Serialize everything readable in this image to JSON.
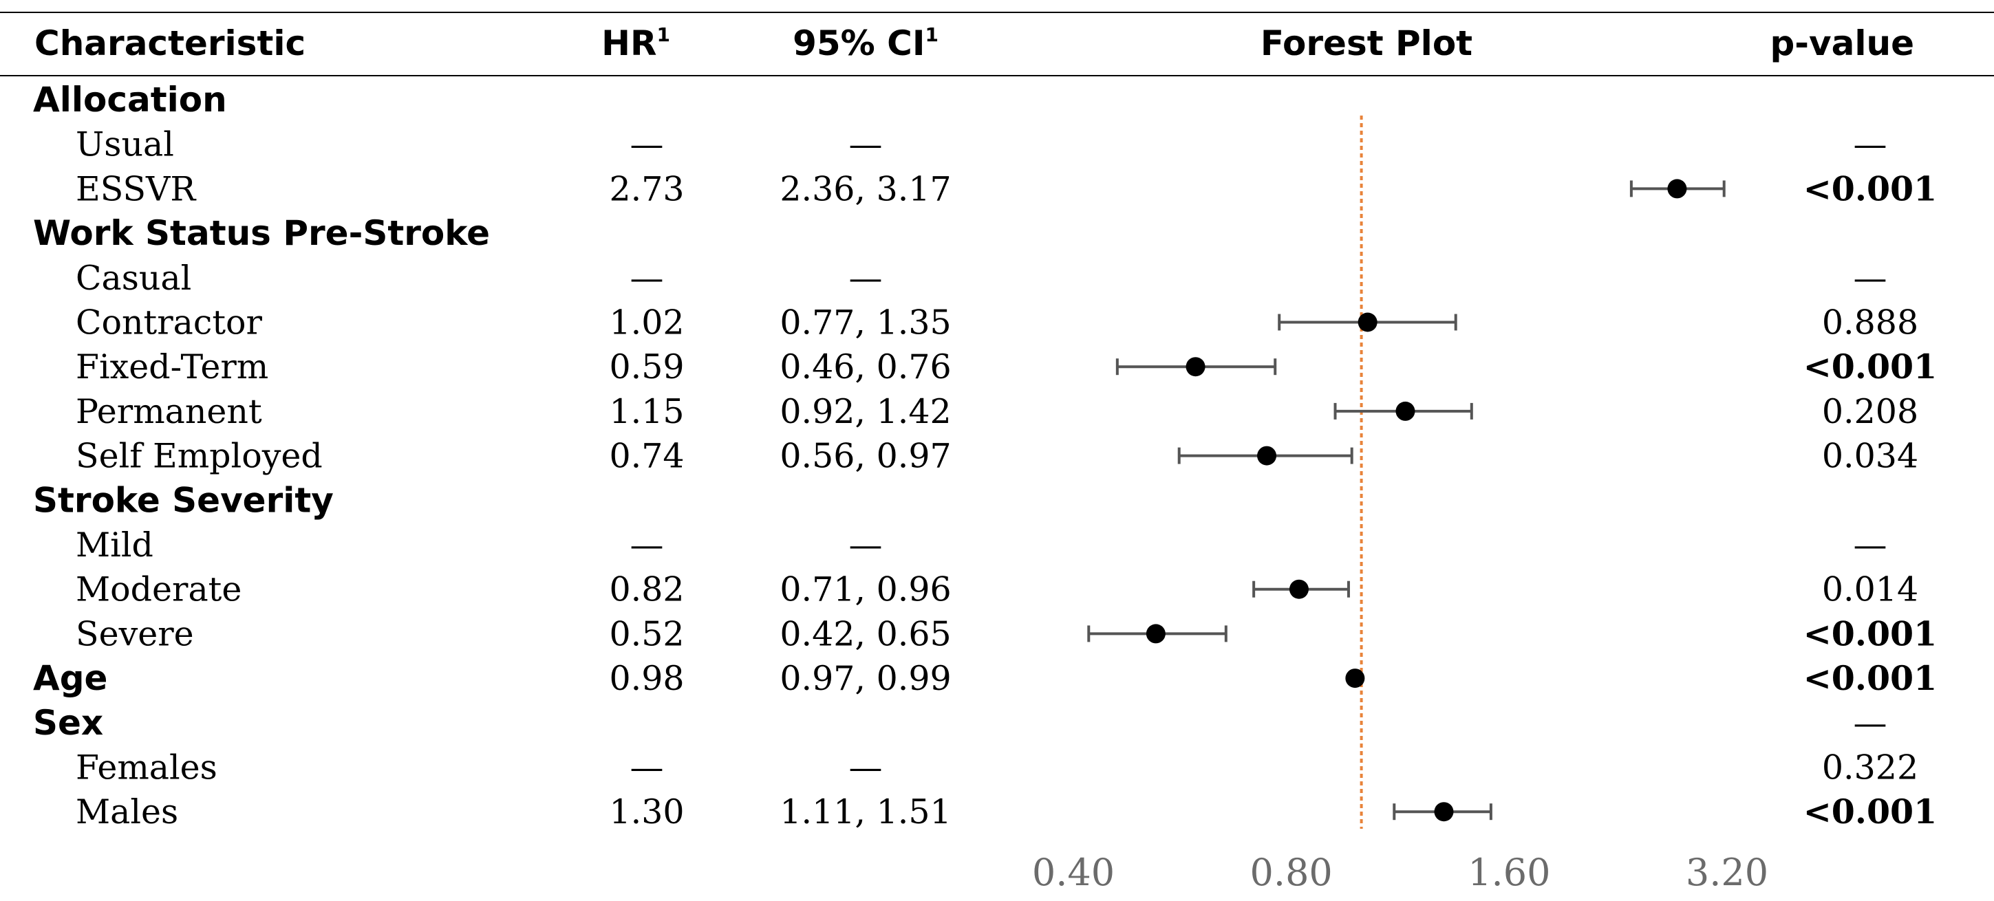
{
  "header": {
    "characteristic": "Characteristic",
    "hr": "HR",
    "hr_sup": "1",
    "ci": "95% CI",
    "ci_sup": "1",
    "forest": "Forest Plot",
    "pvalue": "p-value"
  },
  "rows": [
    {
      "label": "Allocation",
      "group": true,
      "hr": "",
      "ci": "",
      "p": "",
      "p_bold": false
    },
    {
      "label": "Usual",
      "group": false,
      "hr": "—",
      "ci": "—",
      "p": "—",
      "p_bold": false
    },
    {
      "label": "ESSVR",
      "group": false,
      "hr": "2.73",
      "ci": "2.36, 3.17",
      "p": "<0.001",
      "p_bold": true
    },
    {
      "label": "Work Status Pre-Stroke",
      "group": true,
      "hr": "",
      "ci": "",
      "p": "",
      "p_bold": false
    },
    {
      "label": "Casual",
      "group": false,
      "hr": "—",
      "ci": "—",
      "p": "—",
      "p_bold": false
    },
    {
      "label": "Contractor",
      "group": false,
      "hr": "1.02",
      "ci": "0.77, 1.35",
      "p": "0.888",
      "p_bold": false
    },
    {
      "label": "Fixed-Term",
      "group": false,
      "hr": "0.59",
      "ci": "0.46, 0.76",
      "p": "<0.001",
      "p_bold": true
    },
    {
      "label": "Permanent",
      "group": false,
      "hr": "1.15",
      "ci": "0.92, 1.42",
      "p": "0.208",
      "p_bold": false
    },
    {
      "label": "Self Employed",
      "group": false,
      "hr": "0.74",
      "ci": "0.56, 0.97",
      "p": "0.034",
      "p_bold": false
    },
    {
      "label": "Stroke Severity",
      "group": true,
      "hr": "",
      "ci": "",
      "p": "",
      "p_bold": false
    },
    {
      "label": "Mild",
      "group": false,
      "hr": "—",
      "ci": "—",
      "p": "—",
      "p_bold": false
    },
    {
      "label": "Moderate",
      "group": false,
      "hr": "0.82",
      "ci": "0.71, 0.96",
      "p": "0.014",
      "p_bold": false
    },
    {
      "label": "Severe",
      "group": false,
      "hr": "0.52",
      "ci": "0.42, 0.65",
      "p": "<0.001",
      "p_bold": true
    },
    {
      "label": "Age",
      "group": true,
      "hr": "0.98",
      "ci": "0.97, 0.99",
      "p": "<0.001",
      "p_bold": true
    },
    {
      "label": "Sex",
      "group": true,
      "hr": "",
      "ci": "",
      "p": "—",
      "p_bold": false
    },
    {
      "label": "Females",
      "group": false,
      "hr": "—",
      "ci": "—",
      "p": "0.322",
      "p_bold": false
    },
    {
      "label": "Males",
      "group": false,
      "hr": "1.30",
      "ci": "1.11, 1.51",
      "p": "<0.001",
      "p_bold": true
    }
  ],
  "chart_data": {
    "type": "scatter",
    "title": "Forest Plot",
    "x_scale": "log",
    "x_ticks": [
      0.4,
      0.8,
      1.6,
      3.2
    ],
    "x_tick_labels": [
      "0.40",
      "0.80",
      "1.60",
      "3.20"
    ],
    "reference_line": 1.0,
    "xlim": [
      0.4,
      3.2
    ],
    "points": [
      {
        "label": "ESSVR",
        "hr": 2.73,
        "lo": 2.36,
        "hi": 3.17
      },
      {
        "label": "Contractor",
        "hr": 1.02,
        "lo": 0.77,
        "hi": 1.35
      },
      {
        "label": "Fixed-Term",
        "hr": 0.59,
        "lo": 0.46,
        "hi": 0.76
      },
      {
        "label": "Permanent",
        "hr": 1.15,
        "lo": 0.92,
        "hi": 1.42
      },
      {
        "label": "Self Employed",
        "hr": 0.74,
        "lo": 0.56,
        "hi": 0.97
      },
      {
        "label": "Moderate",
        "hr": 0.82,
        "lo": 0.71,
        "hi": 0.96
      },
      {
        "label": "Severe",
        "hr": 0.52,
        "lo": 0.42,
        "hi": 0.65
      },
      {
        "label": "Age",
        "hr": 0.98,
        "lo": 0.97,
        "hi": 0.99
      },
      {
        "label": "Males",
        "hr": 1.3,
        "lo": 1.11,
        "hi": 1.51
      }
    ],
    "colors": {
      "point": "#000000",
      "ci_line": "#555555",
      "reference_line": "#e8833a",
      "tick_text": "#6b6b6b"
    }
  }
}
